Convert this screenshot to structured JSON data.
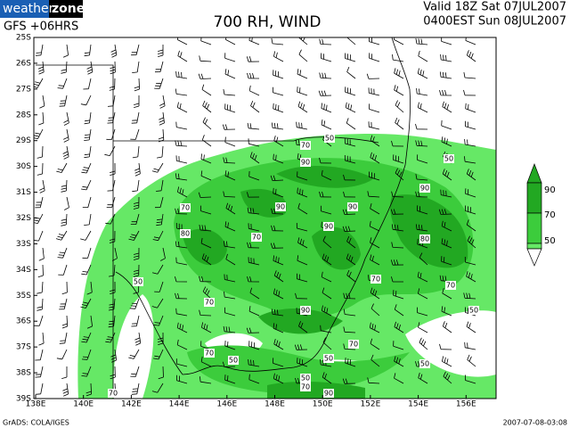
{
  "header": {
    "logo_left": "weather",
    "logo_right": "zone",
    "run": "GFS +06HRS",
    "title": "700 RH, WIND",
    "valid_utc": "Valid 18Z Sat 07JUL2007",
    "valid_local": "0400EST Sun 08JUL2007"
  },
  "map": {
    "lat_labels": [
      "25S",
      "26S",
      "27S",
      "28S",
      "29S",
      "30S",
      "31S",
      "32S",
      "33S",
      "34S",
      "35S",
      "36S",
      "37S",
      "38S",
      "39S"
    ],
    "lon_labels": [
      "138E",
      "140E",
      "142E",
      "144E",
      "146E",
      "148E",
      "150E",
      "152E",
      "154E",
      "156E"
    ],
    "contour_labels": [
      70,
      50,
      90,
      50,
      70,
      90,
      90,
      90,
      70,
      80,
      90,
      80,
      70,
      50,
      70,
      90,
      70,
      50,
      70,
      70,
      50,
      50,
      50,
      50,
      70,
      90,
      70
    ]
  },
  "legend": {
    "labels": [
      90,
      70,
      50
    ]
  },
  "footer": {
    "source": "GrADS: COLA/IGES",
    "timestamp": "2007-07-08-03:08"
  }
}
